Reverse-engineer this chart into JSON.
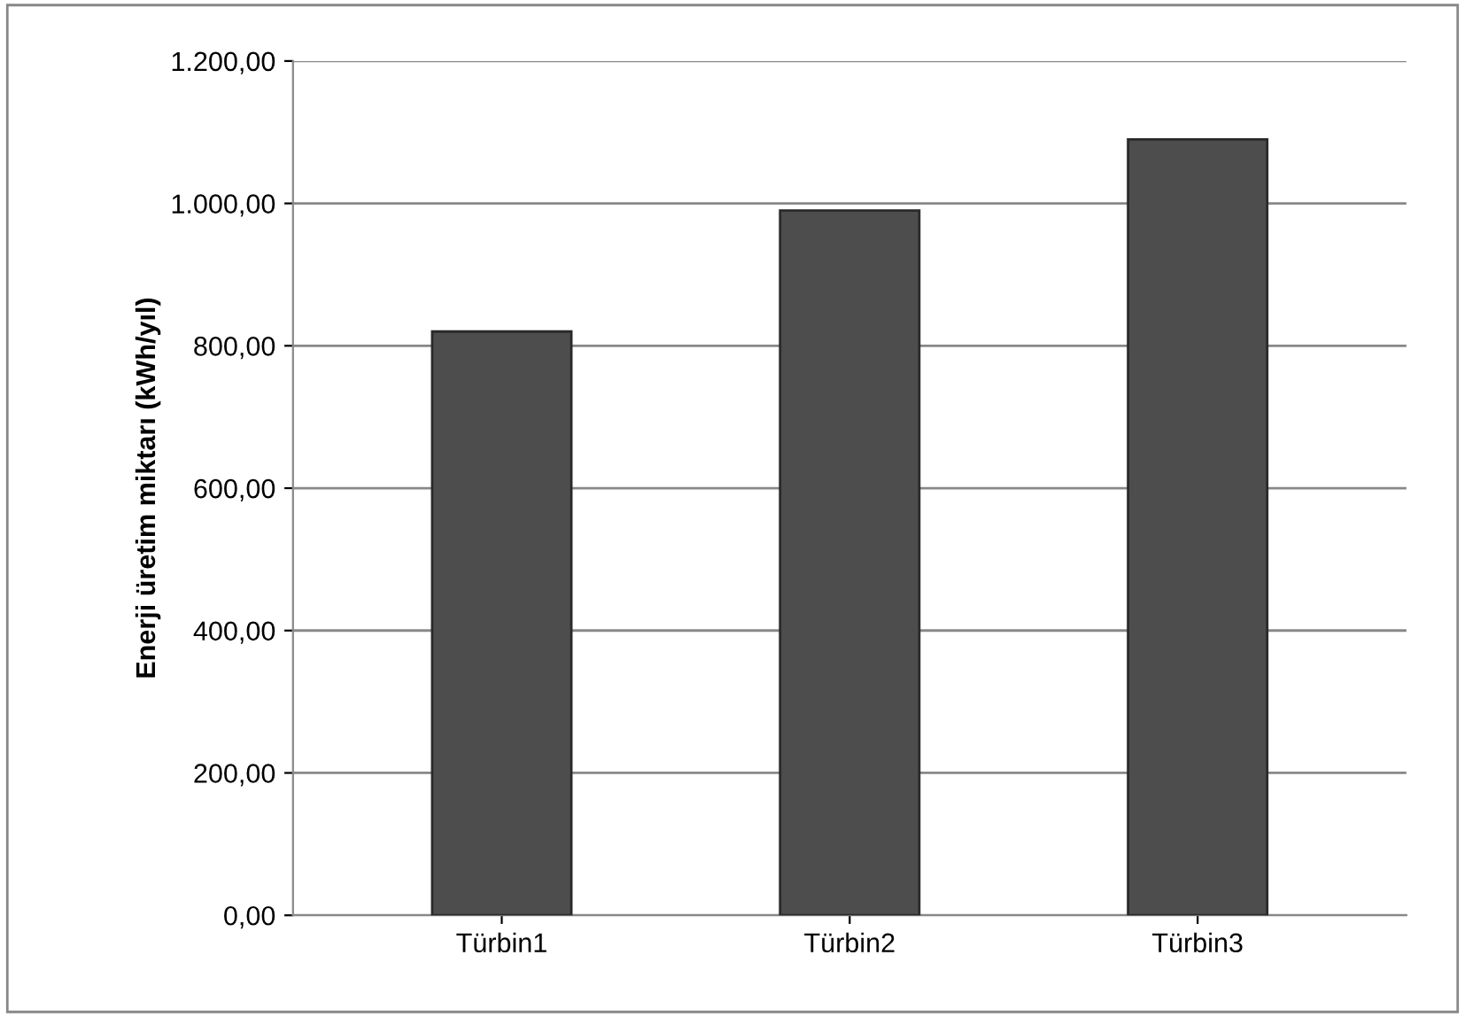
{
  "chart_data": {
    "type": "bar",
    "ylabel": "Enerji üretim miktarı (kWh/yıl)",
    "categories": [
      "Türbin1",
      "Türbin2",
      "Türbin3"
    ],
    "values": [
      820,
      990,
      1090
    ],
    "color": "#4d4d4d",
    "ylim": [
      0,
      1200
    ],
    "yticks": [
      {
        "value": 0,
        "label": "0,00"
      },
      {
        "value": 200,
        "label": "200,00"
      },
      {
        "value": 400,
        "label": "400,00"
      },
      {
        "value": 600,
        "label": "600,00"
      },
      {
        "value": 800,
        "label": "800,00"
      },
      {
        "value": 1000,
        "label": "1.000,00"
      },
      {
        "value": 1200,
        "label": "1.200,00"
      }
    ],
    "grid": "y"
  }
}
